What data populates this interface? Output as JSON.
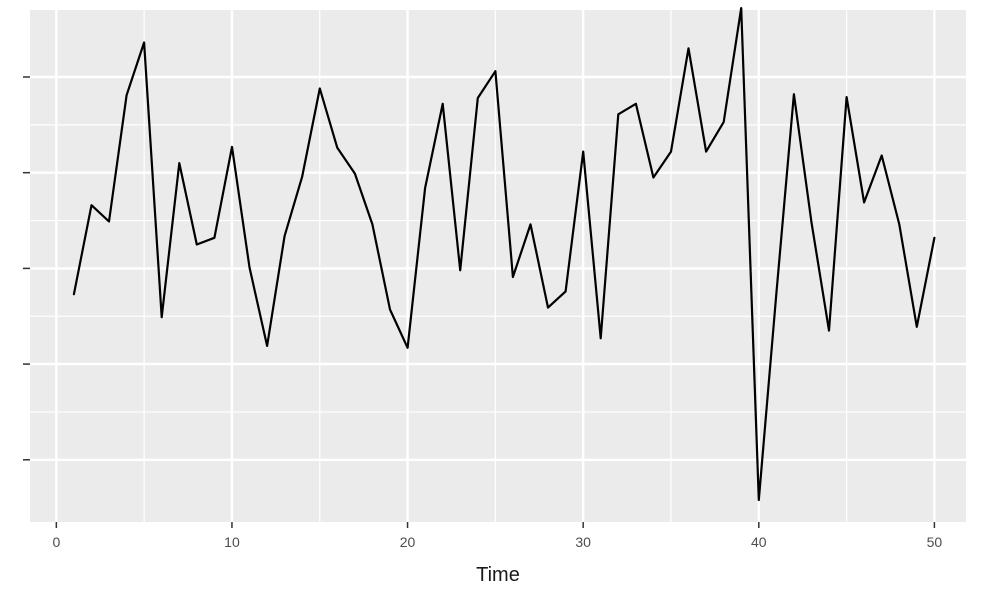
{
  "chart_data": {
    "type": "line",
    "title": "",
    "xlabel": "Time",
    "ylabel": "",
    "xlim": [
      -1.5,
      51.8
    ],
    "ylim": [
      -2.65,
      2.7
    ],
    "x_ticks": [
      0,
      10,
      20,
      30,
      40,
      50
    ],
    "x_tick_labels": [
      "0",
      "10",
      "20",
      "30",
      "40",
      "50"
    ],
    "y_ticks": [
      -2,
      -1,
      0,
      1,
      2
    ],
    "y_tick_labels": [
      "",
      "",
      "",
      "",
      ""
    ],
    "grid": true,
    "background_color": "#ebebeb",
    "grid_color": "#ffffff",
    "line_color": "#000000",
    "series": [
      {
        "x": [
          1,
          2,
          3,
          4,
          5,
          6,
          7,
          8,
          9,
          10,
          11,
          12,
          13,
          14,
          15,
          16,
          17,
          18,
          19,
          20,
          21,
          22,
          23,
          24,
          25,
          26,
          27,
          28,
          29,
          30,
          31,
          32,
          33,
          34,
          35,
          36,
          37,
          38,
          39,
          40,
          41,
          42,
          43,
          44,
          45,
          46,
          47,
          48,
          49,
          50
        ],
        "values": [
          -0.27,
          0.66,
          0.49,
          1.81,
          2.36,
          -0.51,
          1.1,
          0.25,
          0.32,
          1.27,
          0.01,
          -0.81,
          0.34,
          0.96,
          1.88,
          1.26,
          0.99,
          0.46,
          -0.43,
          -0.83,
          0.84,
          1.72,
          -0.02,
          1.78,
          2.06,
          -0.09,
          0.46,
          -0.41,
          -0.24,
          1.22,
          -0.73,
          1.61,
          1.72,
          0.95,
          1.22,
          2.3,
          1.22,
          1.53,
          2.72,
          -2.42,
          -0.27,
          1.82,
          0.48,
          -0.65,
          1.79,
          0.69,
          1.18,
          0.46,
          -0.61,
          0.32
        ]
      }
    ]
  }
}
